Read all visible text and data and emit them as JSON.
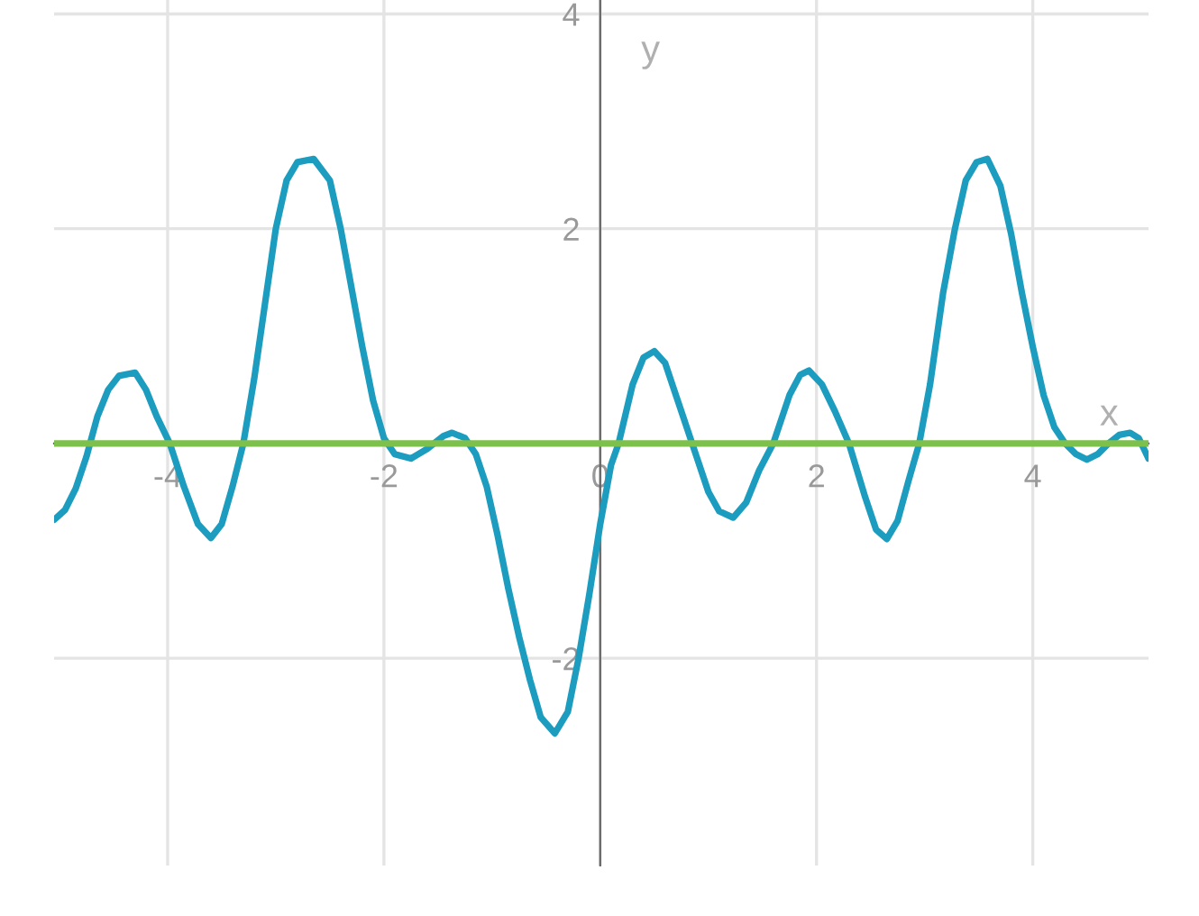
{
  "chart_data": {
    "type": "line",
    "xlabel": "x",
    "ylabel": "y",
    "xlim": [
      -5.05,
      5.07
    ],
    "ylim": [
      -3.93,
      4.13
    ],
    "xticks": [
      -4,
      -2,
      0,
      2,
      4
    ],
    "yticks": [
      -2,
      {
        "value": 0,
        "label": null
      },
      2,
      4
    ],
    "grid": true,
    "legend": false,
    "series": [
      {
        "color": "#1c9dbf",
        "x": [
          -5.05,
          -4.95,
          -4.85,
          -4.75,
          -4.65,
          -4.55,
          -4.45,
          -4.3,
          -4.2,
          -4.1,
          -3.98,
          -3.85,
          -3.72,
          -3.6,
          -3.5,
          -3.4,
          -3.3,
          -3.2,
          -3.1,
          -3.0,
          -2.9,
          -2.8,
          -2.65,
          -2.5,
          -2.4,
          -2.3,
          -2.2,
          -2.1,
          -2.0,
          -1.9,
          -1.75,
          -1.6,
          -1.45,
          -1.37,
          -1.25,
          -1.15,
          -1.05,
          -0.95,
          -0.85,
          -0.75,
          -0.65,
          -0.55,
          -0.42,
          -0.3,
          -0.2,
          -0.1,
          0.0,
          0.1,
          0.17,
          0.3,
          0.4,
          0.5,
          0.6,
          0.7,
          0.85,
          1.0,
          1.1,
          1.23,
          1.35,
          1.47,
          1.6,
          1.75,
          1.85,
          1.93,
          2.05,
          2.17,
          2.3,
          2.45,
          2.55,
          2.65,
          2.75,
          2.85,
          2.95,
          3.05,
          3.17,
          3.28,
          3.38,
          3.48,
          3.58,
          3.7,
          3.8,
          3.9,
          4.0,
          4.1,
          4.2,
          4.3,
          4.4,
          4.5,
          4.6,
          4.7,
          4.8,
          4.9,
          4.98,
          5.07
        ],
        "values": [
          -0.71,
          -0.62,
          -0.42,
          -0.12,
          0.25,
          0.5,
          0.63,
          0.66,
          0.5,
          0.25,
          0,
          -0.4,
          -0.75,
          -0.88,
          -0.75,
          -0.4,
          0,
          0.6,
          1.3,
          2.0,
          2.45,
          2.62,
          2.65,
          2.45,
          2.0,
          1.45,
          0.9,
          0.4,
          0.05,
          -0.1,
          -0.14,
          -0.05,
          0.07,
          0.1,
          0.05,
          -0.1,
          -0.4,
          -0.85,
          -1.35,
          -1.8,
          -2.2,
          -2.55,
          -2.7,
          -2.5,
          -2.0,
          -1.4,
          -0.75,
          -0.2,
          0,
          0.55,
          0.8,
          0.86,
          0.75,
          0.45,
          0,
          -0.45,
          -0.63,
          -0.69,
          -0.55,
          -0.25,
          0,
          0.45,
          0.64,
          0.68,
          0.55,
          0.3,
          0,
          -0.5,
          -0.8,
          -0.89,
          -0.72,
          -0.35,
          0,
          0.55,
          1.4,
          2.0,
          2.45,
          2.62,
          2.65,
          2.4,
          1.95,
          1.4,
          0.9,
          0.45,
          0.15,
          0,
          -0.1,
          -0.15,
          -0.1,
          0,
          0.08,
          0.1,
          0.05,
          -0.14
        ]
      },
      {
        "color": "#7dc04b",
        "x": [
          -5.05,
          5.07
        ],
        "values": [
          0,
          0
        ]
      }
    ]
  }
}
